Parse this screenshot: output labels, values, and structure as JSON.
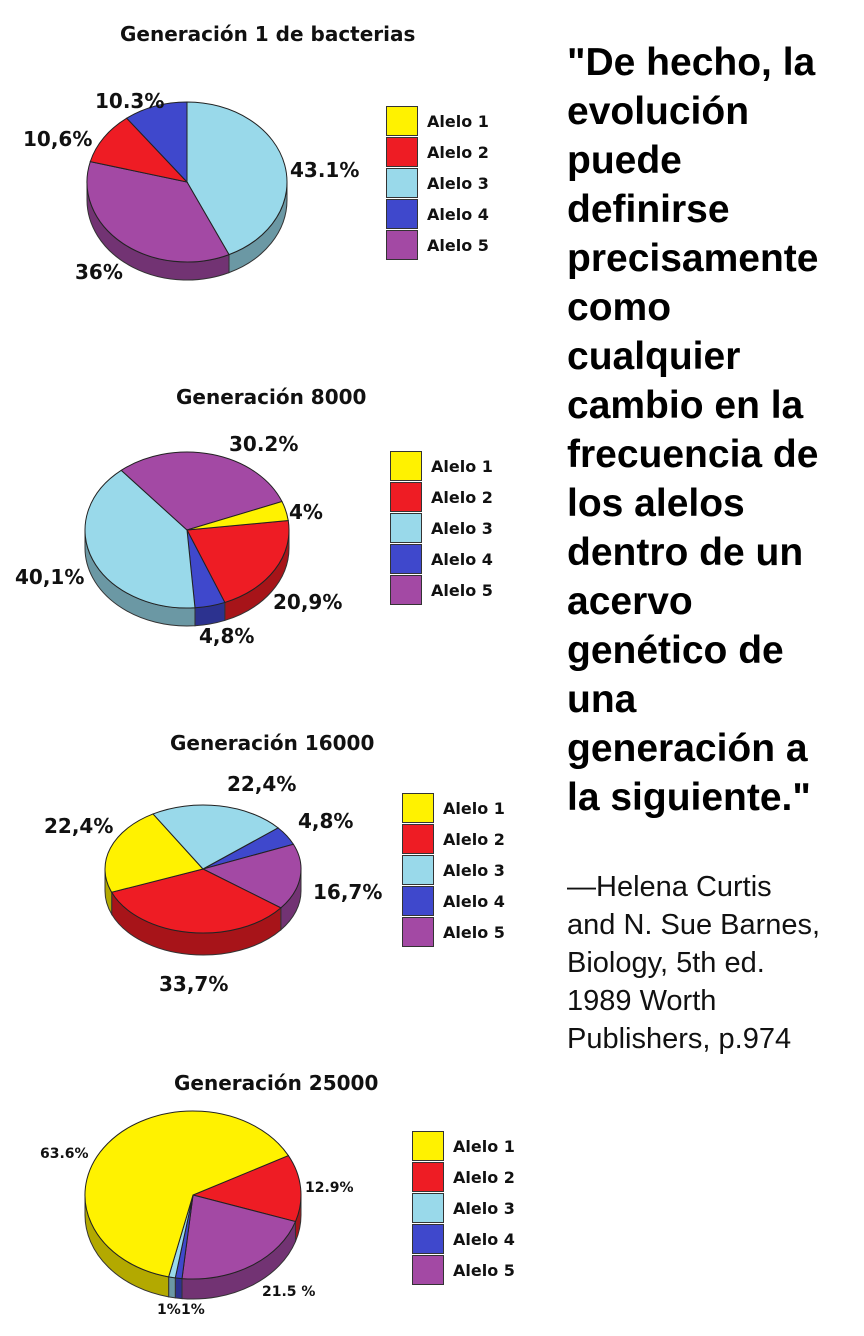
{
  "colors": {
    "alelo1": "#fff200",
    "alelo2": "#ee1c24",
    "alelo3": "#99d9ea",
    "alelo4": "#3f48cc",
    "alelo5": "#a349a4"
  },
  "chart_data": [
    {
      "type": "pie",
      "title": "Generación 1 de bacterias",
      "categories": [
        "Alelo 1",
        "Alelo 2",
        "Alelo 3",
        "Alelo 4",
        "Alelo 5"
      ],
      "values": [
        0,
        10.6,
        43.1,
        10.3,
        36
      ],
      "data_labels": [
        "",
        "10,6%",
        "43.1%",
        "10.3%",
        "36%"
      ],
      "legend": [
        "Alelo 1",
        "Alelo 2",
        "Alelo 3",
        "Alelo 4",
        "Alelo 5"
      ],
      "legend_position": "right",
      "style": "3d"
    },
    {
      "type": "pie",
      "title": "Generación 8000",
      "categories": [
        "Alelo 1",
        "Alelo 2",
        "Alelo 3",
        "Alelo 4",
        "Alelo 5"
      ],
      "values": [
        4,
        20.9,
        40.1,
        4.8,
        30.2
      ],
      "data_labels": [
        "4%",
        "20,9%",
        "40,1%",
        "4,8%",
        "30.2%"
      ],
      "legend": [
        "Alelo 1",
        "Alelo 2",
        "Alelo 3",
        "Alelo 4",
        "Alelo 5"
      ],
      "legend_position": "right",
      "style": "3d"
    },
    {
      "type": "pie",
      "title": "Generación 16000",
      "categories": [
        "Alelo 1",
        "Alelo 2",
        "Alelo 3",
        "Alelo 4",
        "Alelo 5"
      ],
      "values": [
        22.4,
        33.7,
        22.4,
        4.8,
        16.7
      ],
      "data_labels": [
        "22,4%",
        "33,7%",
        "22,4%",
        "4,8%",
        "16,7%"
      ],
      "legend": [
        "Alelo 1",
        "Alelo 2",
        "Alelo 3",
        "Alelo 4",
        "Alelo 5"
      ],
      "legend_position": "right",
      "style": "3d"
    },
    {
      "type": "pie",
      "title": "Generación 25000",
      "categories": [
        "Alelo 1",
        "Alelo 2",
        "Alelo 3",
        "Alelo 4",
        "Alelo 5"
      ],
      "values": [
        63.6,
        12.9,
        1,
        1,
        21.5
      ],
      "data_labels": [
        "63.6%",
        "12.9%",
        "1%",
        "1%",
        "21.5 %"
      ],
      "legend": [
        "Alelo 1",
        "Alelo 2",
        "Alelo 3",
        "Alelo 4",
        "Alelo 5"
      ],
      "legend_position": "right",
      "style": "3d"
    }
  ],
  "quote": {
    "lines": [
      "\"De hecho, la",
      "evolución",
      "puede",
      "definirse",
      "precisamente",
      "como",
      "cualquier",
      "cambio en la",
      "frecuencia de",
      "los alelos",
      "dentro de un",
      "acervo",
      "genético de",
      "una",
      "generación a",
      "la siguiente.\""
    ]
  },
  "attribution": {
    "lines": [
      "—Helena Curtis",
      "and N. Sue Barnes,",
      "Biology, 5th ed.",
      "1989 Worth",
      "Publishers, p.974"
    ]
  }
}
